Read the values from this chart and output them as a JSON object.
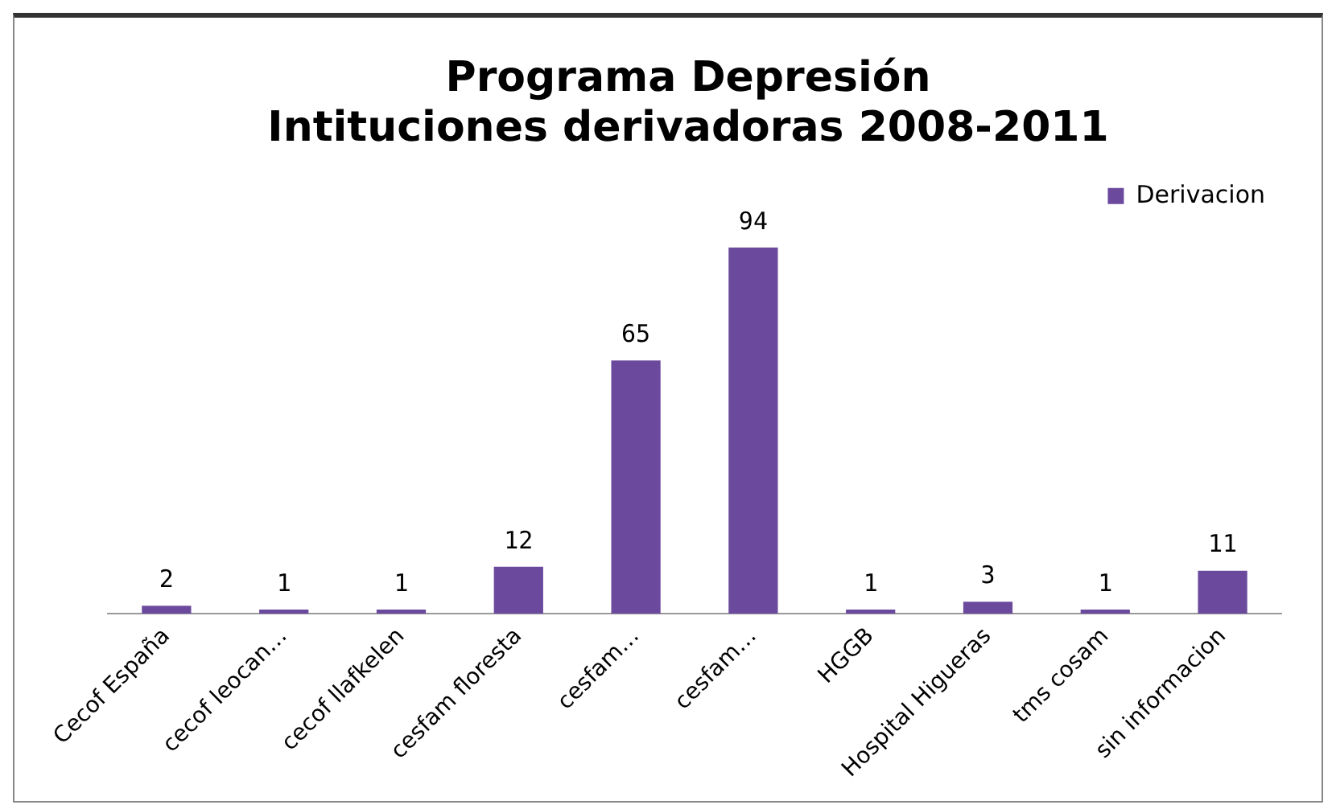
{
  "chart_data": {
    "type": "bar",
    "title": "Programa Depresión\nIntituciones derivadoras 2008-2011",
    "categories": [
      "Cecof España",
      "cecof leocan…",
      "cecof llafkelen",
      "cesfam floresta",
      "cesfam…",
      "cesfam…",
      "HGGB",
      "Hospital Higueras",
      "tms cosam",
      "sin informacion"
    ],
    "series": [
      {
        "name": "Derivacion",
        "color": "#6b4a9e",
        "values": [
          2,
          1,
          1,
          12,
          65,
          94,
          1,
          3,
          1,
          11
        ]
      }
    ],
    "relative": false,
    "data_labels": true,
    "legend": "top right",
    "grid": false
  }
}
